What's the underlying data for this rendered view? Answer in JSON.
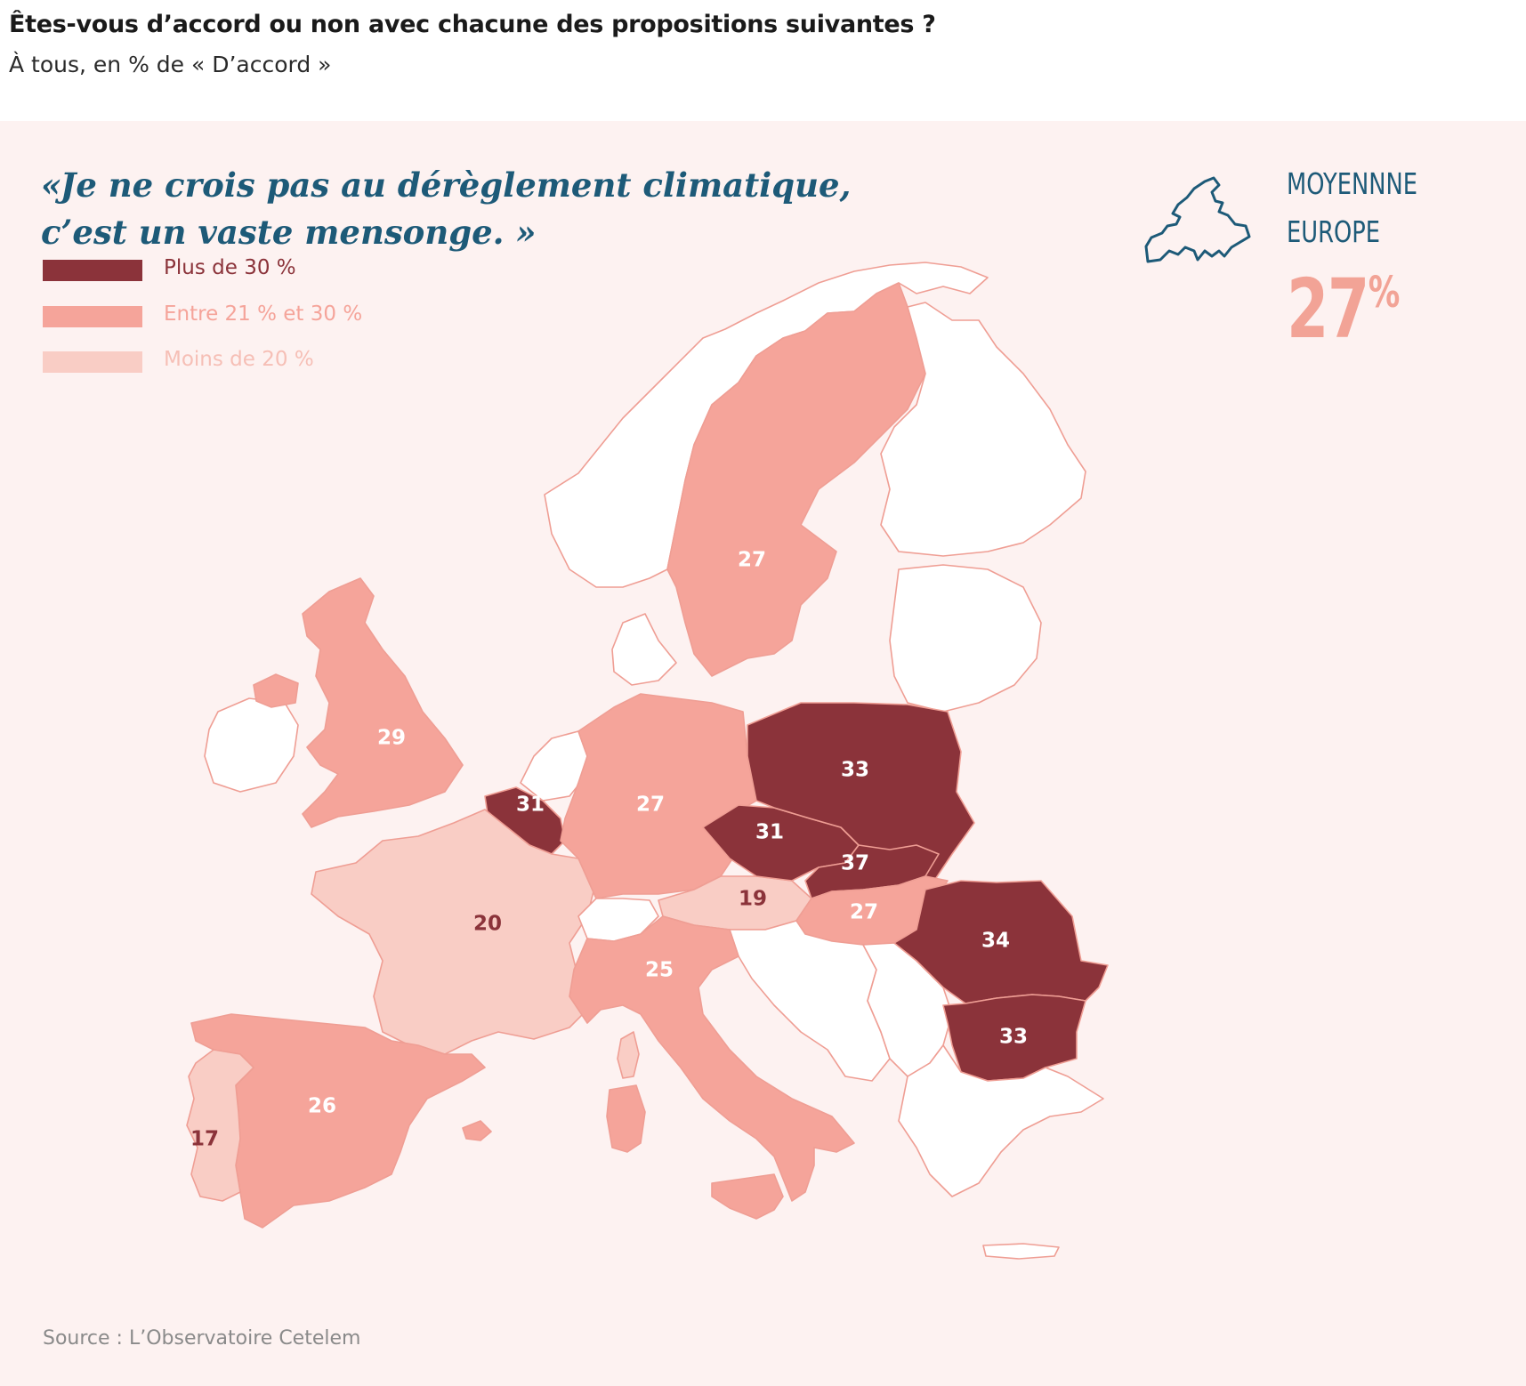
{
  "header": {
    "title": "Êtes-vous d’accord ou non avec chacune des propositions suivantes ?",
    "subtitle": "À tous, en % de « D’accord »"
  },
  "quote": {
    "line1": "«Je ne crois pas au dérèglement climatique,",
    "line2": "c’est un vaste mensonge. »"
  },
  "legend": [
    {
      "label": "Plus de 30 %",
      "color": "#8b333a",
      "text_color": "#8b333a"
    },
    {
      "label": "Entre 21 % et 30 %",
      "color": "#f5a49a",
      "text_color": "#f5a49a"
    },
    {
      "label": "Moins de 20 %",
      "color": "#f9cdc5",
      "text_color": "#f6bfb6"
    }
  ],
  "average": {
    "label": "MOYENNNE\nEUROPE",
    "value": "27",
    "unit": "%"
  },
  "colors": {
    "high": "#8b333a",
    "mid": "#f5a49a",
    "low": "#f9cdc5",
    "no_data": "#ffffff",
    "border": "#ef9e94",
    "panel": "#fdf2f1",
    "accent": "#1d5a78"
  },
  "map_data": {
    "metric": "% D’accord",
    "countries": [
      {
        "country": "Sweden",
        "value": 27,
        "class": "mid"
      },
      {
        "country": "United Kingdom",
        "value": 29,
        "class": "mid"
      },
      {
        "country": "Belgium",
        "value": 31,
        "class": "high"
      },
      {
        "country": "Germany",
        "value": 27,
        "class": "mid"
      },
      {
        "country": "Poland",
        "value": 33,
        "class": "high"
      },
      {
        "country": "Czech Republic",
        "value": 31,
        "class": "high"
      },
      {
        "country": "Slovakia",
        "value": 37,
        "class": "high"
      },
      {
        "country": "Austria",
        "value": 19,
        "class": "low"
      },
      {
        "country": "Hungary",
        "value": 27,
        "class": "mid"
      },
      {
        "country": "Romania",
        "value": 34,
        "class": "high"
      },
      {
        "country": "Bulgaria",
        "value": 33,
        "class": "high"
      },
      {
        "country": "France",
        "value": 20,
        "class": "low"
      },
      {
        "country": "Italy",
        "value": 25,
        "class": "mid"
      },
      {
        "country": "Spain",
        "value": 26,
        "class": "mid"
      },
      {
        "country": "Portugal",
        "value": 17,
        "class": "low"
      }
    ]
  },
  "source": "Source : L’Observatoire Cetelem"
}
